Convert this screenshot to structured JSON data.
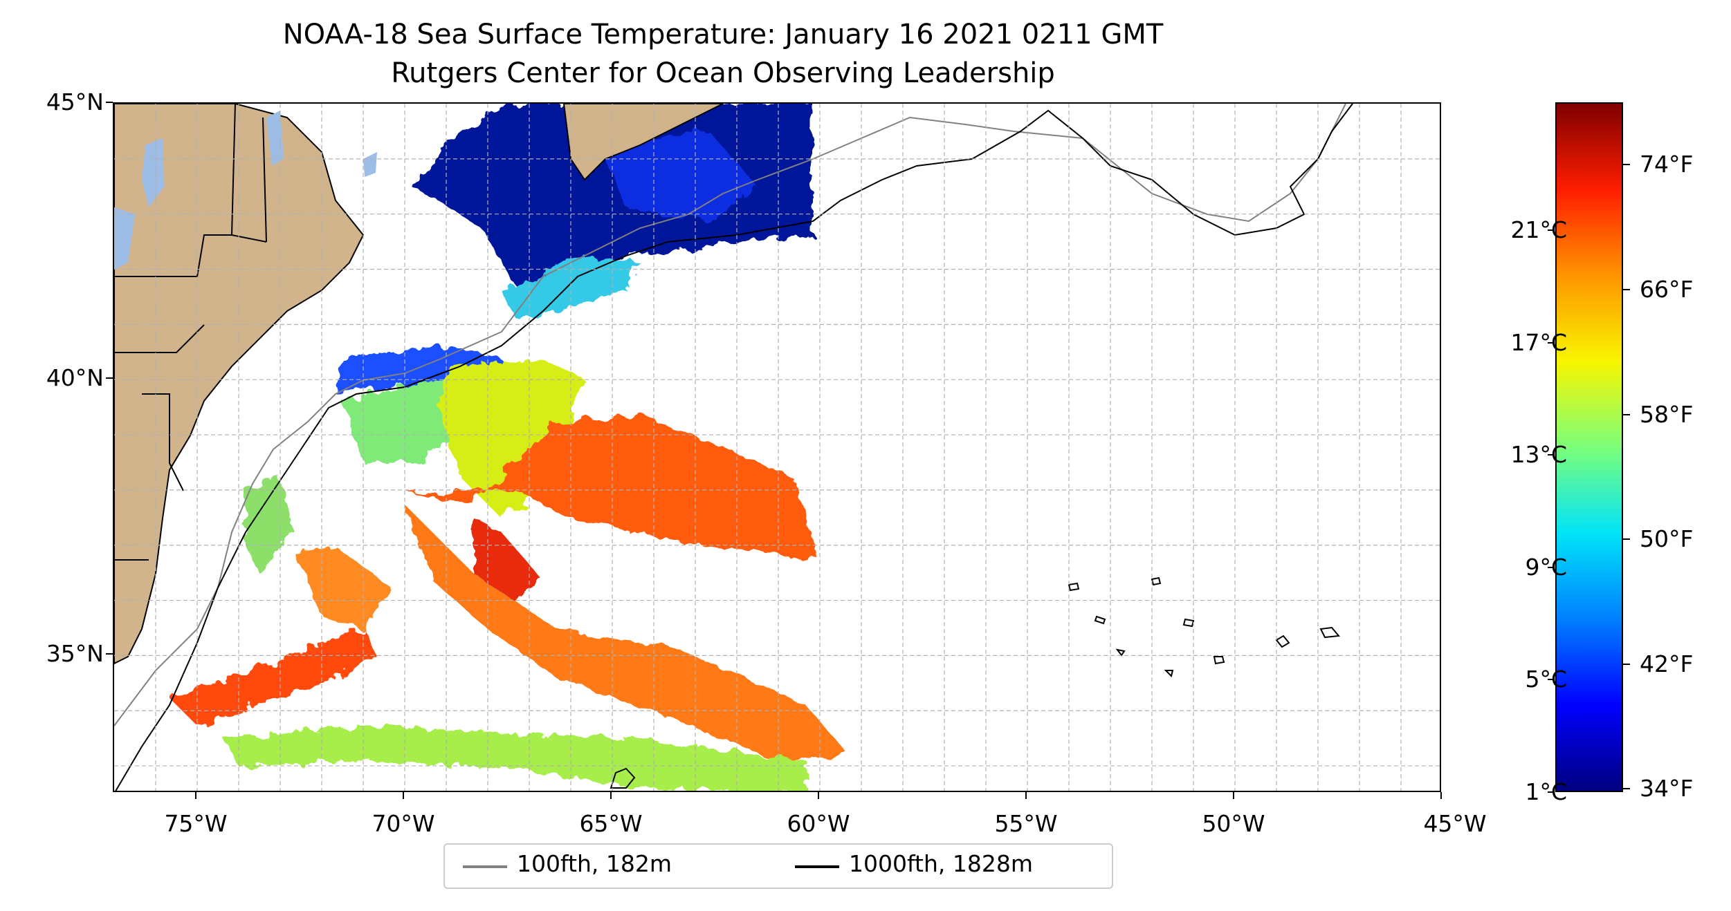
{
  "title": "NOAA-18 Sea Surface Temperature: January 16 2021 0211 GMT",
  "subtitle": "Rutgers Center for Ocean Observing Leadership",
  "map": {
    "extent": {
      "lon": [
        -77,
        -45
      ],
      "lat": [
        32.5,
        45
      ]
    },
    "lat_ticks": [
      {
        "value": 45,
        "label": "45°N"
      },
      {
        "value": 40,
        "label": "40°N"
      },
      {
        "value": 35,
        "label": "35°N"
      }
    ],
    "lon_ticks": [
      {
        "value": -75,
        "label": "75°W"
      },
      {
        "value": -70,
        "label": "70°W"
      },
      {
        "value": -65,
        "label": "65°W"
      },
      {
        "value": -60,
        "label": "60°W"
      },
      {
        "value": -55,
        "label": "55°W"
      },
      {
        "value": -50,
        "label": "50°W"
      },
      {
        "value": -45,
        "label": "45°W"
      }
    ],
    "grid": "dashed, 1-degree",
    "colors": {
      "land": "#d2b48c",
      "lakes": "#9dbde7",
      "coast": "#000000"
    }
  },
  "colorbar": {
    "colormap": "jet",
    "range_f": [
      33.8,
      78
    ],
    "celsius_ticks": [
      {
        "value": 1,
        "label": "1°C"
      },
      {
        "value": 5,
        "label": "5°C"
      },
      {
        "value": 9,
        "label": "9°C"
      },
      {
        "value": 13,
        "label": "13°C"
      },
      {
        "value": 17,
        "label": "17°C"
      },
      {
        "value": 21,
        "label": "21°C"
      }
    ],
    "fahrenheit_ticks": [
      {
        "value": 34,
        "label": "34°F"
      },
      {
        "value": 42,
        "label": "42°F"
      },
      {
        "value": 50,
        "label": "50°F"
      },
      {
        "value": 58,
        "label": "58°F"
      },
      {
        "value": 66,
        "label": "66°F"
      },
      {
        "value": 74,
        "label": "74°F"
      }
    ]
  },
  "legend": [
    {
      "label": "100fth, 182m",
      "color": "#808080"
    },
    {
      "label": "1000fth, 1828m",
      "color": "#000000"
    }
  ]
}
